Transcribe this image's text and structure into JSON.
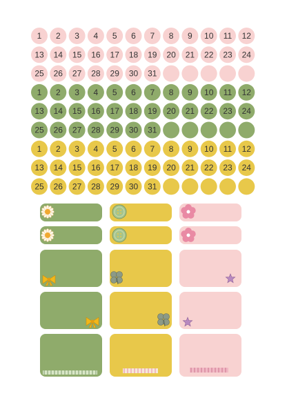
{
  "day_circles": {
    "groups": [
      {
        "color": "#f8d2d1",
        "days": [
          1,
          2,
          3,
          4,
          5,
          6,
          7,
          8,
          9,
          10,
          11,
          12,
          13,
          14,
          15,
          16,
          17,
          18,
          19,
          20,
          21,
          22,
          23,
          24,
          25,
          26,
          27,
          28,
          29,
          30,
          31
        ]
      },
      {
        "color": "#8fab6b",
        "days": [
          1,
          2,
          3,
          4,
          5,
          6,
          7,
          8,
          9,
          10,
          11,
          12,
          13,
          14,
          15,
          16,
          17,
          18,
          19,
          20,
          21,
          22,
          23,
          24,
          25,
          26,
          27,
          28,
          29,
          30,
          31
        ]
      },
      {
        "color": "#e8c84a",
        "days": [
          1,
          2,
          3,
          4,
          5,
          6,
          7,
          8,
          9,
          10,
          11,
          12,
          13,
          14,
          15,
          16,
          17,
          18,
          19,
          20,
          21,
          22,
          23,
          24,
          25,
          26,
          27,
          28,
          29,
          30,
          31
        ]
      }
    ]
  }
}
